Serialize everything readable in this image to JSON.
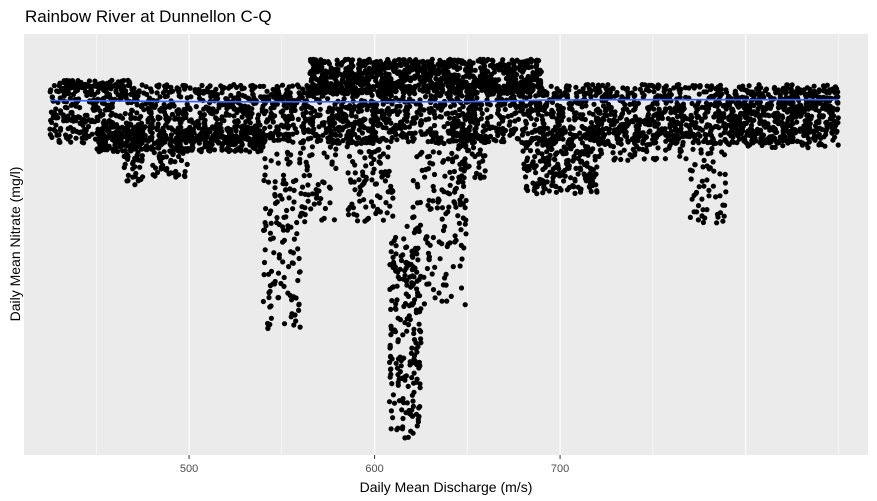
{
  "chart_data": {
    "type": "scatter",
    "title": "Rainbow River at Dunnellon C-Q",
    "xlabel": "Daily Mean Discharge (m/s)",
    "ylabel": "Daily Mean Nitrate (mg/l)",
    "x_ticks": [
      {
        "label": "500",
        "value": 500
      },
      {
        "label": "600",
        "value": 600
      },
      {
        "label": "700",
        "value": 700
      }
    ],
    "y_ticks": [],
    "xlim": [
      411,
      866
    ],
    "ylim": [
      0,
      1
    ],
    "grid": true,
    "legend": "none",
    "colors": {
      "panel": "#EBEBEB",
      "grid": "#FFFFFF",
      "points": "#000000",
      "trend": "#3366FF"
    },
    "trend_line": {
      "x": [
        425,
        490,
        520,
        560,
        600,
        640,
        665,
        690,
        720,
        760,
        800,
        850
      ],
      "y": [
        0.842,
        0.84,
        0.839,
        0.839,
        0.839,
        0.839,
        0.84,
        0.843,
        0.844,
        0.844,
        0.844,
        0.844
      ]
    },
    "clusters": [
      {
        "x": [
          425,
          850
        ],
        "y": [
          0.74,
          0.88
        ],
        "n": 2600
      },
      {
        "x": [
          565,
          690
        ],
        "y": [
          0.86,
          0.94
        ],
        "n": 900
      },
      {
        "x": [
          430,
          470
        ],
        "y": [
          0.87,
          0.89
        ],
        "n": 80
      },
      {
        "x": [
          450,
          540
        ],
        "y": [
          0.72,
          0.78
        ],
        "n": 350
      },
      {
        "x": [
          465,
          475
        ],
        "y": [
          0.64,
          0.74
        ],
        "n": 40
      },
      {
        "x": [
          480,
          500
        ],
        "y": [
          0.66,
          0.75
        ],
        "n": 60
      },
      {
        "x": [
          540,
          560
        ],
        "y": [
          0.3,
          0.72
        ],
        "n": 120
      },
      {
        "x": [
          560,
          580
        ],
        "y": [
          0.55,
          0.78
        ],
        "n": 60
      },
      {
        "x": [
          585,
          610
        ],
        "y": [
          0.55,
          0.8
        ],
        "n": 120
      },
      {
        "x": [
          608,
          625
        ],
        "y": [
          0.04,
          0.55
        ],
        "n": 200
      },
      {
        "x": [
          620,
          650
        ],
        "y": [
          0.35,
          0.72
        ],
        "n": 140
      },
      {
        "x": [
          645,
          660
        ],
        "y": [
          0.65,
          0.78
        ],
        "n": 60
      },
      {
        "x": [
          680,
          720
        ],
        "y": [
          0.62,
          0.78
        ],
        "n": 260
      },
      {
        "x": [
          720,
          770
        ],
        "y": [
          0.7,
          0.8
        ],
        "n": 120
      },
      {
        "x": [
          770,
          790
        ],
        "y": [
          0.55,
          0.78
        ],
        "n": 70
      },
      {
        "x": [
          790,
          850
        ],
        "y": [
          0.73,
          0.87
        ],
        "n": 220
      }
    ]
  }
}
